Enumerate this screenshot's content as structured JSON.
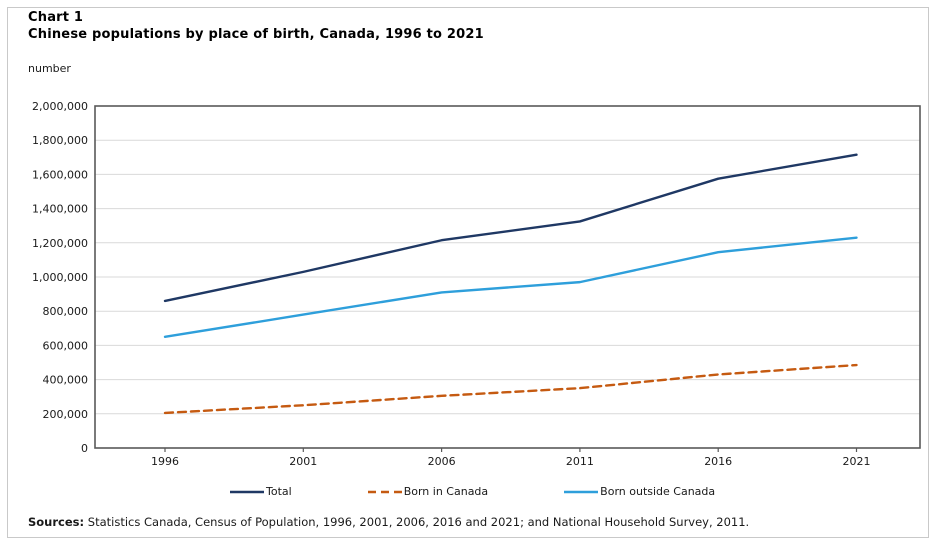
{
  "header": {
    "label": "Chart 1",
    "title": "Chinese populations by place of birth, Canada, 1996 to 2021"
  },
  "y_axis_unit": "number",
  "footer": {
    "sources_label": "Sources:",
    "sources_text": " Statistics Canada, Census of Population, 1996, 2001, 2006, 2016 and 2021; and National Household Survey, 2011."
  },
  "chart_data": {
    "type": "line",
    "title": "Chinese populations by place of birth, Canada, 1996 to 2021",
    "xlabel": "",
    "ylabel": "number",
    "x": [
      1996,
      2001,
      2006,
      2011,
      2016,
      2021
    ],
    "series": [
      {
        "name": "Total",
        "color": "#1f3864",
        "style": "solid",
        "values": [
          860000,
          1030000,
          1215000,
          1325000,
          1575000,
          1715000
        ]
      },
      {
        "name": "Born in Canada",
        "color": "#c55a11",
        "style": "dashed",
        "values": [
          205000,
          250000,
          305000,
          350000,
          430000,
          485000
        ]
      },
      {
        "name": "Born outside Canada",
        "color": "#2e9fdb",
        "style": "solid",
        "values": [
          650000,
          780000,
          910000,
          970000,
          1145000,
          1230000
        ]
      }
    ],
    "ylim": [
      0,
      2000000
    ],
    "ytick_step": 200000,
    "grid": true,
    "legend_position": "bottom",
    "colors": {
      "grid": "#d9d9d9",
      "plot_border": "#595959",
      "tick_text": "#1a1a1a"
    }
  }
}
